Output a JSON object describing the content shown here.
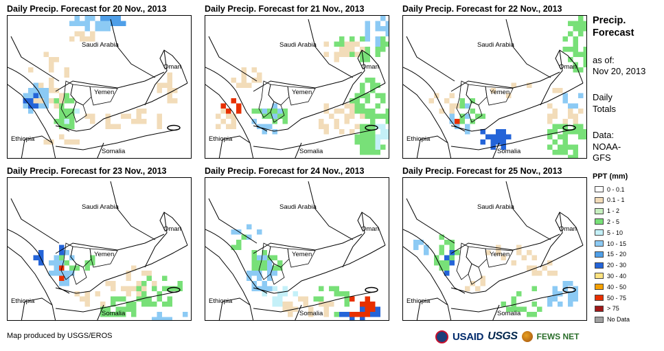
{
  "panels": [
    {
      "title": "Daily Precip. Forecast for 20 Nov., 2013",
      "day": 0
    },
    {
      "title": "Daily Precip. Forecast for 21 Nov., 2013",
      "day": 1
    },
    {
      "title": "Daily Precip. Forecast for 22 Nov., 2013",
      "day": 2
    },
    {
      "title": "Daily Precip. Forecast for 23 Nov., 2013",
      "day": 3
    },
    {
      "title": "Daily Precip. Forecast for 24 Nov., 2013",
      "day": 4
    },
    {
      "title": "Daily Precip. Forecast for 25 Nov., 2013",
      "day": 5
    }
  ],
  "map_labels": {
    "saudi": "Saudi Arabia",
    "oman": "Oman",
    "yemen": "Yemen",
    "ethiopia": "Ethiopia",
    "somalia": "Somalia"
  },
  "side": {
    "title_line1": "Precip.",
    "title_line2": "Forecast",
    "asof_line1": "as of:",
    "asof_line2": "Nov 20, 2013",
    "totals_line1": "Daily",
    "totals_line2": "Totals",
    "data_line1": "Data:",
    "data_line2": "NOAA-",
    "data_line3": "GFS"
  },
  "legend": {
    "title": "PPT (mm)",
    "items": [
      {
        "label": "0 - 0.1",
        "color": "#ffffff"
      },
      {
        "label": "0.1 - 1",
        "color": "#f2dcb9"
      },
      {
        "label": "1 - 2",
        "color": "#c7f0c0"
      },
      {
        "label": "2 - 5",
        "color": "#78e078"
      },
      {
        "label": "5 - 10",
        "color": "#c4f0f8"
      },
      {
        "label": "10 - 15",
        "color": "#8ccaf4"
      },
      {
        "label": "15 - 20",
        "color": "#4f9fe8"
      },
      {
        "label": "20 - 30",
        "color": "#2464d8"
      },
      {
        "label": "30 - 40",
        "color": "#ffe380"
      },
      {
        "label": "40 - 50",
        "color": "#f5a000"
      },
      {
        "label": "50 - 75",
        "color": "#e83000"
      },
      {
        "label": "> 75",
        "color": "#a01818"
      },
      {
        "label": "No Data",
        "color": "#a0a0a0"
      }
    ]
  },
  "credit": "Map produced by USGS/EROS",
  "logos": {
    "usaid": "USAID",
    "usgs": "USGS",
    "fews": "FEWS NET"
  }
}
